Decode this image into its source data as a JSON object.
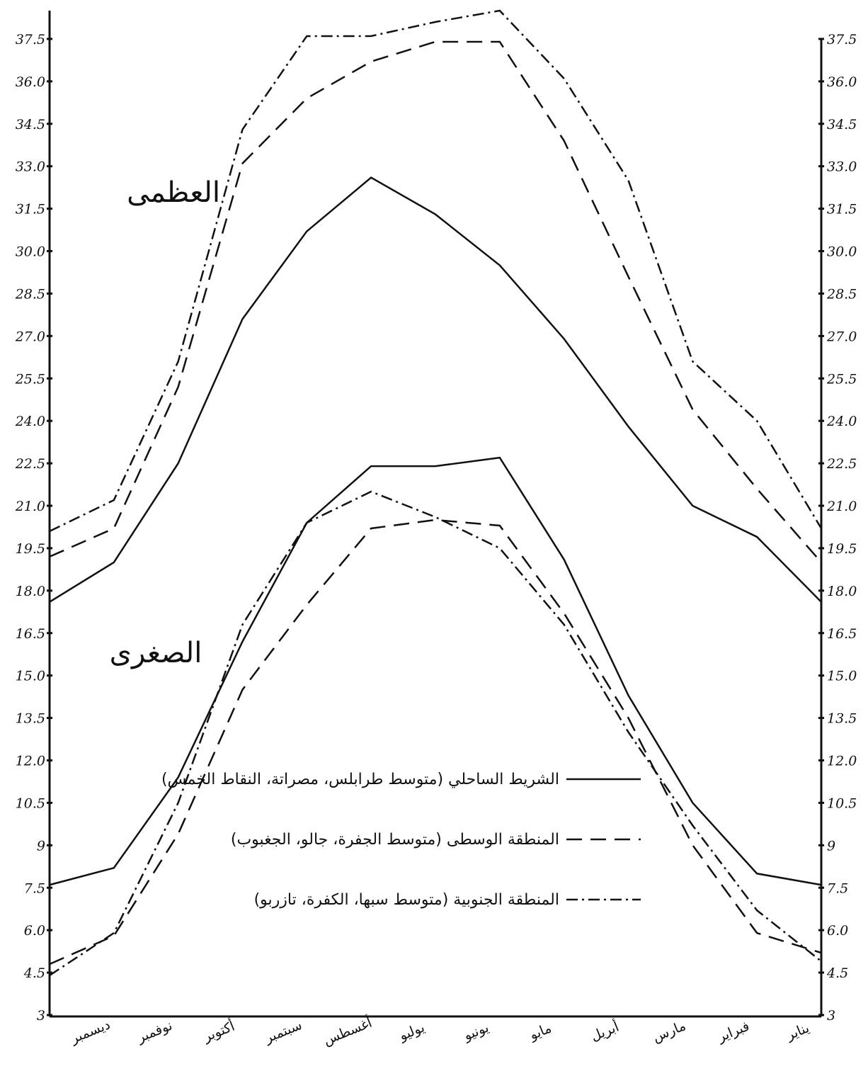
{
  "chart_data": {
    "type": "line",
    "annotations": [
      "العظمى",
      "الصغرى"
    ],
    "categories": [
      "ديسمبر",
      "نوفمبر",
      "أكتوبر",
      "سبتمبر",
      "أغسطس",
      "يوليو",
      "يونيو",
      "مايو",
      "أبريل",
      "مارس",
      "فبراير",
      "يناير",
      null
    ],
    "ylim": [
      3,
      38.5
    ],
    "yticks": [
      3,
      4.5,
      {
        "value": 6,
        "label": "6.0"
      },
      7.5,
      9,
      10.5,
      {
        "value": 12,
        "label": "12.0"
      },
      13.5,
      {
        "value": 15,
        "label": "15.0"
      },
      16.5,
      {
        "value": 18,
        "label": "18.0"
      },
      19.5,
      {
        "value": 21,
        "label": "21.0"
      },
      22.5,
      {
        "value": 24,
        "label": "24.0"
      },
      25.5,
      {
        "value": 27,
        "label": "27.0"
      },
      28.5,
      {
        "value": 30,
        "label": "30.0"
      },
      31.5,
      {
        "value": 33,
        "label": "33.0"
      },
      34.5,
      {
        "value": 36,
        "label": "36.0"
      },
      37.5
    ],
    "series": [
      {
        "name": "الشريط الساحلي (متوسط طرابلس، مصراتة، النقاط الخمس)",
        "color": "#111111",
        "style": "solid",
        "values": [
          17.6,
          19.0,
          22.5,
          27.6,
          30.7,
          32.6,
          31.3,
          29.5,
          26.9,
          23.8,
          21.0,
          19.9,
          17.6
        ],
        "min_values": [
          7.6,
          8.2,
          11.4,
          16.2,
          20.4,
          22.4,
          22.4,
          22.7,
          19.1,
          14.3,
          10.5,
          8.0,
          7.6
        ]
      },
      {
        "name": "المنطقة الوسطى (متوسط الجفرة، جالو، الجغبوب)",
        "color": "#111111",
        "style": "dashed",
        "values": [
          19.2,
          20.2,
          25.2,
          33.1,
          35.4,
          36.7,
          37.4,
          37.4,
          33.9,
          29.1,
          24.4,
          21.6,
          19.0
        ],
        "min_values": [
          4.8,
          5.8,
          9.4,
          14.5,
          17.5,
          20.2,
          20.5,
          20.3,
          17.2,
          13.5,
          9.0,
          5.9,
          5.2
        ]
      },
      {
        "name": "المنطقة الجنوبية (متوسط سبها، الكفرة، تازربو)",
        "color": "#111111",
        "style": "dashdot",
        "values": [
          20.1,
          21.2,
          26.1,
          34.3,
          37.6,
          37.6,
          38.1,
          38.5,
          36.1,
          32.5,
          26.1,
          24.0,
          20.2
        ],
        "min_values": [
          4.4,
          5.9,
          10.5,
          16.8,
          20.4,
          21.5,
          20.6,
          19.5,
          16.8,
          13.0,
          9.7,
          6.7,
          4.9
        ]
      }
    ]
  }
}
